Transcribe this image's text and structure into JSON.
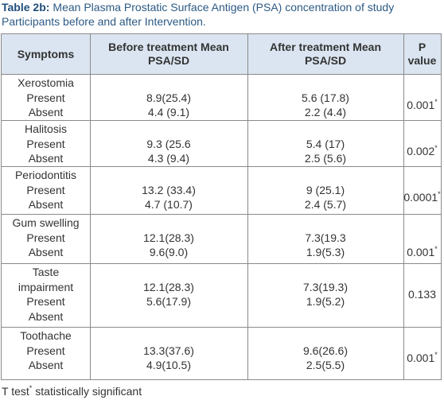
{
  "caption": {
    "label": "Table 2b:",
    "text": "Mean Plasma Prostatic Surface Antigen (PSA) concentration of study Participants before and after Intervention."
  },
  "table": {
    "header": [
      "Symptoms",
      "Before treatment Mean PSA/SD",
      "After treatment Mean PSA/SD",
      "P value"
    ],
    "rows": [
      {
        "symptom": [
          "Xerostomia",
          "Present",
          "Absent"
        ],
        "before": [
          "8.9(25.4)",
          "4.4 (9.1)"
        ],
        "after": [
          "5.6 (17.8)",
          "2.2 (4.4)"
        ],
        "p": {
          "value": "0.001",
          "mark": "*"
        }
      },
      {
        "symptom": [
          "Halitosis",
          "Present",
          "Absent"
        ],
        "before": [
          "9.3 (25.6",
          "4.3 (9.4)"
        ],
        "after": [
          "5.4 (17)",
          "2.5 (5.6)"
        ],
        "p": {
          "value": "0.002",
          "mark": "*"
        }
      },
      {
        "symptom": [
          "Periodontitis",
          "Present",
          "Absent"
        ],
        "before": [
          "13.2 (33.4)",
          "4.7 (10.7)"
        ],
        "after": [
          "9 (25.1)",
          "2.4 (5.7)"
        ],
        "p": {
          "value": "0.0001",
          "mark": "*"
        }
      },
      {
        "symptom": [
          "Gum swelling",
          "Present",
          "Absent"
        ],
        "before": [
          "12.1(28.3)",
          "9.6(9.0)"
        ],
        "after": [
          "7.3(19.3",
          "1.9(5.3)"
        ],
        "p": {
          "value": "0.001",
          "mark": "*"
        }
      },
      {
        "symptom": [
          "Taste",
          "impairment",
          "Present",
          "Absent"
        ],
        "before": [
          "12.1(28.3)",
          "5.6(17.9)"
        ],
        "after": [
          "7.3(19.3)",
          "1.9(5.2)"
        ],
        "p": {
          "value": "0.133"
        }
      },
      {
        "symptom": [
          "Toothache",
          "Present",
          "Absent"
        ],
        "before": [
          "13.3(37.6)",
          "4.9(10.5)"
        ],
        "after": [
          "9.6(26.6)",
          "2.5(5.5)"
        ],
        "p": {
          "value": "0.001",
          "mark": "*"
        }
      }
    ]
  },
  "footnote": {
    "text": "T test",
    "mark": "*",
    "rest": "statistically significant"
  }
}
